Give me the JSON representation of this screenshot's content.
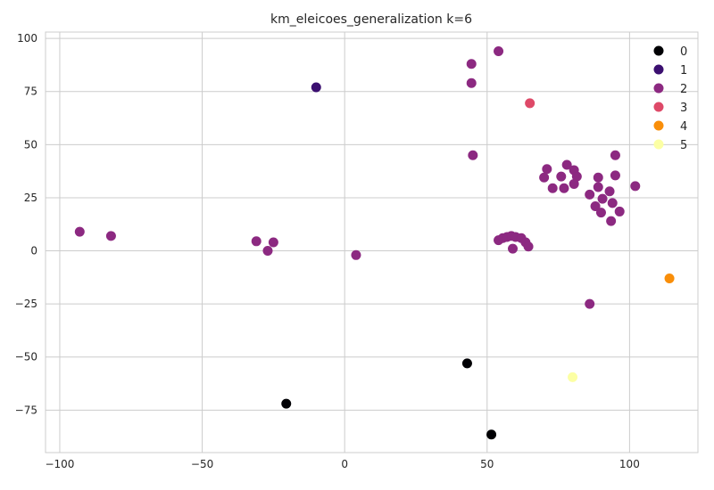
{
  "chart_data": {
    "type": "scatter",
    "title": "km_eleicoes_generalization k=6",
    "xlabel": "",
    "ylabel": "",
    "xlim": [
      -105,
      124
    ],
    "ylim": [
      -95,
      103
    ],
    "xticks": [
      -100,
      -50,
      0,
      50,
      100
    ],
    "yticks": [
      -75,
      -50,
      -25,
      0,
      25,
      50,
      75,
      100
    ],
    "xtick_labels": [
      "−100",
      "−50",
      "0",
      "50",
      "100"
    ],
    "ytick_labels": [
      "−75",
      "−50",
      "−25",
      "0",
      "25",
      "50",
      "75",
      "100"
    ],
    "grid": true,
    "legend_position": "top-right",
    "series": [
      {
        "name": "0",
        "color": "#000004",
        "points": [
          [
            43,
            -53
          ],
          [
            51.5,
            -86.5
          ],
          [
            -20.5,
            -72
          ]
        ]
      },
      {
        "name": "1",
        "color": "#3b0f70",
        "points": [
          [
            -10,
            77
          ]
        ]
      },
      {
        "name": "2",
        "color": "#8c2981",
        "points": [
          [
            -93,
            9
          ],
          [
            -82,
            7
          ],
          [
            -31,
            4.5
          ],
          [
            -25,
            4
          ],
          [
            -27,
            0
          ],
          [
            4,
            -2
          ],
          [
            44.5,
            88
          ],
          [
            54,
            94
          ],
          [
            44.5,
            79
          ],
          [
            45,
            45
          ],
          [
            54,
            5
          ],
          [
            55.5,
            6
          ],
          [
            57,
            6.5
          ],
          [
            58.5,
            7
          ],
          [
            60,
            6.5
          ],
          [
            62,
            6
          ],
          [
            63.5,
            4
          ],
          [
            64.5,
            2
          ],
          [
            59,
            1
          ],
          [
            70,
            34.5
          ],
          [
            71,
            38.5
          ],
          [
            73,
            29.5
          ],
          [
            76,
            35
          ],
          [
            77,
            29.5
          ],
          [
            78,
            40.5
          ],
          [
            80.5,
            38
          ],
          [
            81.5,
            35
          ],
          [
            80.5,
            31.5
          ],
          [
            86,
            26.5
          ],
          [
            88,
            21
          ],
          [
            89,
            30
          ],
          [
            89,
            34.5
          ],
          [
            90,
            18
          ],
          [
            90.5,
            24.5
          ],
          [
            93,
            28
          ],
          [
            93.5,
            14
          ],
          [
            94,
            22.5
          ],
          [
            95,
            35.5
          ],
          [
            95,
            45
          ],
          [
            96.5,
            18.5
          ],
          [
            102,
            30.5
          ],
          [
            86,
            -25
          ]
        ]
      },
      {
        "name": "3",
        "color": "#de4968",
        "points": [
          [
            65,
            69.5
          ]
        ]
      },
      {
        "name": "4",
        "color": "#f98e09",
        "points": [
          [
            114,
            -13
          ]
        ]
      },
      {
        "name": "5",
        "color": "#fcffa4",
        "points": [
          [
            80,
            -59.5
          ]
        ]
      }
    ]
  }
}
